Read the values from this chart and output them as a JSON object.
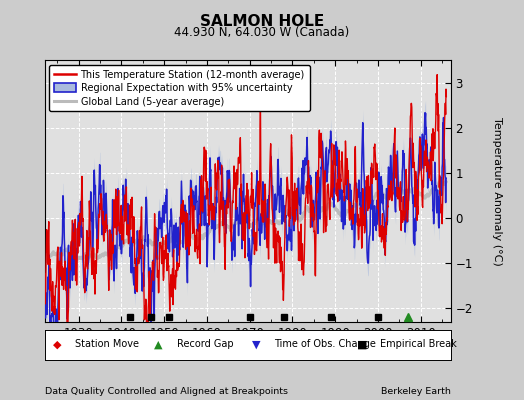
{
  "title": "SALMON HOLE",
  "subtitle": "44.930 N, 64.030 W (Canada)",
  "ylabel": "Temperature Anomaly (°C)",
  "xlabel_left": "Data Quality Controlled and Aligned at Breakpoints",
  "xlabel_right": "Berkeley Earth",
  "xlim": [
    1922,
    2017
  ],
  "ylim": [
    -2.3,
    3.5
  ],
  "yticks": [
    -2,
    -1,
    0,
    1,
    2,
    3
  ],
  "xticks": [
    1930,
    1940,
    1950,
    1960,
    1970,
    1980,
    1990,
    2000,
    2010
  ],
  "bg_color": "#cccccc",
  "plot_bg_color": "#e0e0e0",
  "grid_color": "#ffffff",
  "empirical_breaks": [
    1942,
    1947,
    1951,
    1970,
    1978,
    1989,
    2000
  ],
  "record_gap_year": [
    2007
  ],
  "red_line_color": "#dd0000",
  "blue_line_color": "#2222cc",
  "blue_fill_color": "#aabbdd",
  "gray_line_color": "#bbbbbb",
  "seed": 17
}
